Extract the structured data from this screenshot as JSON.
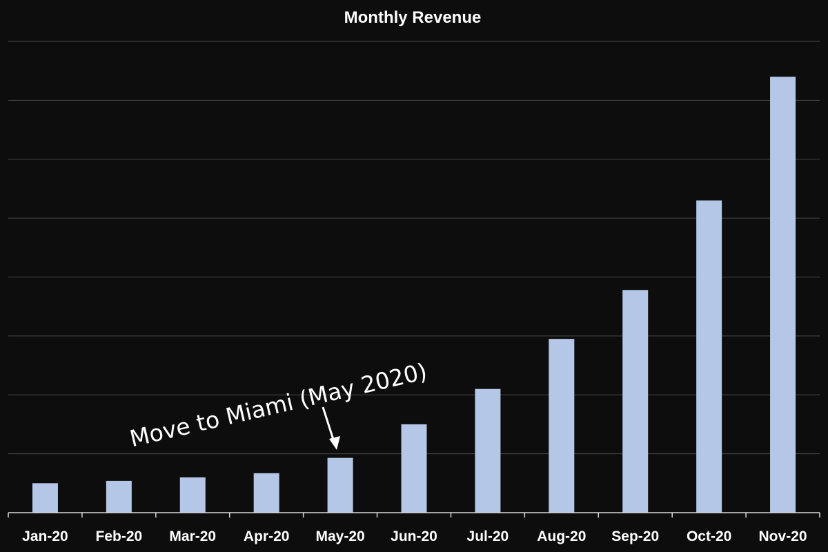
{
  "chart_data": {
    "type": "bar",
    "title": "Monthly Revenue",
    "xlabel": "",
    "ylabel": "",
    "categories": [
      "Jan-20",
      "Feb-20",
      "Mar-20",
      "Apr-20",
      "May-20",
      "Jun-20",
      "Jul-20",
      "Aug-20",
      "Sep-20",
      "Oct-20",
      "Nov-20"
    ],
    "values": [
      0.5,
      0.54,
      0.6,
      0.67,
      0.93,
      1.5,
      2.1,
      2.95,
      3.78,
      5.3,
      7.4
    ],
    "ylim": [
      0,
      8
    ],
    "grid": true,
    "legend": "none",
    "annotation": {
      "text": "Move to Miami (May 2020)",
      "category": "May-20"
    }
  },
  "colors": {
    "background": "#0d0d0d",
    "bar": "#b4c7e7",
    "gridline": "#4a4a4a",
    "axis": "#d9d9d9",
    "text": "#ffffff"
  }
}
